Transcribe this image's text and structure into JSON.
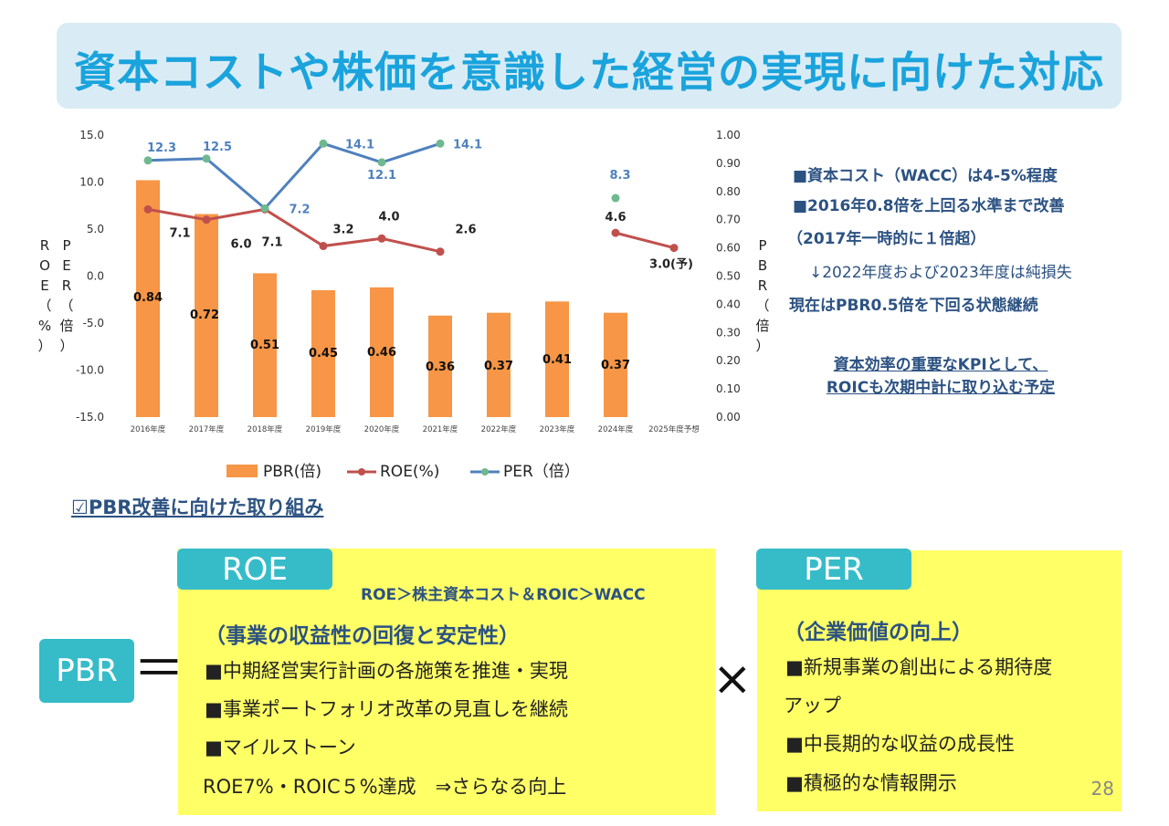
{
  "title": "資本コストや株価を意識した経営の実現に向けた対応",
  "chart_data": {
    "type": "bar+line",
    "categories": [
      "2016年度",
      "2017年度",
      "2018年度",
      "2019年度",
      "2020年度",
      "2021年度",
      "2022年度",
      "2023年度",
      "2024年度",
      "2025年度予想"
    ],
    "left_axis": {
      "label": "ROE(%) / PER(倍)",
      "ylim": [
        -15,
        15
      ],
      "ticks": [
        "15.0",
        "10.0",
        "5.0",
        "0.0",
        "-5.0",
        "-10.0",
        "-15.0"
      ]
    },
    "right_axis": {
      "label": "PBR(倍)",
      "ylim": [
        0,
        1
      ],
      "ticks": [
        "1.00",
        "0.90",
        "0.80",
        "0.70",
        "0.60",
        "0.50",
        "0.40",
        "0.30",
        "0.20",
        "0.10",
        "0.00"
      ]
    },
    "series": [
      {
        "name": "PBR(倍)",
        "type": "bar",
        "axis": "right",
        "color": "#f79646",
        "values": [
          0.84,
          0.72,
          0.51,
          0.45,
          0.46,
          0.36,
          0.37,
          0.41,
          0.37,
          null
        ],
        "labels": [
          "0.84",
          "0.72",
          "0.51",
          "0.45",
          "0.46",
          "0.36",
          "0.37",
          "0.41",
          "0.37",
          ""
        ]
      },
      {
        "name": "ROE(%)",
        "type": "line",
        "axis": "left",
        "color": "#c0504d",
        "values": [
          7.1,
          6.0,
          7.1,
          3.2,
          4.0,
          2.6,
          null,
          null,
          4.6,
          3.0
        ],
        "labels": [
          "7.1",
          "6.0",
          "7.1",
          "3.2",
          "4.0",
          "2.6",
          "",
          "",
          "4.6",
          "3.0(予)"
        ]
      },
      {
        "name": "PER（倍）",
        "type": "line",
        "axis": "left",
        "color": "#4f81bd",
        "values": [
          12.3,
          12.5,
          7.2,
          14.1,
          12.1,
          14.1,
          null,
          null,
          8.3,
          null
        ],
        "labels": [
          "12.3",
          "12.5",
          "7.2",
          "14.1",
          "12.1",
          "14.1",
          "",
          "",
          "8.3",
          ""
        ]
      }
    ],
    "legend": [
      "PBR(倍)",
      "ROE(%)",
      "PER（倍）"
    ],
    "legend_position": "bottom"
  },
  "axis_labels": {
    "left_chars": [
      "R",
      "O",
      "E",
      "（",
      "%",
      "）"
    ],
    "left_chars2": [
      "P",
      "E",
      "R",
      "（",
      "倍",
      "）"
    ],
    "right_chars": [
      "P",
      "B",
      "R",
      "（",
      "倍",
      "）"
    ]
  },
  "notes": {
    "line1": "■資本コスト（WACC）は4-5%程度",
    "line2": "■2016年0.8倍を上回る水準まで改善",
    "line3": "（2017年一時的に１倍超）",
    "line4": "↓2022年度および2023年度は純損失",
    "line5": "現在はPBR0.5倍を下回る状態継続",
    "kpi1": "資本効率の重要なKPIとして、",
    "kpi2": "ROICも次期中計に取り込む予定"
  },
  "section_head": "☑PBR改善に向けた取り組み",
  "pbr_label": "PBR",
  "equals": "＝",
  "times": "×",
  "roe_box": {
    "tab": "ROE",
    "formula": "ROE＞株主資本コスト＆ROIC＞WACC",
    "subhead": "（事業の収益性の回復と安定性）",
    "items": [
      "■中期経営実行計画の各施策を推進・実現",
      "■事業ポートフォリオ改革の見直しを継続",
      "■マイルストーン"
    ],
    "last": "ROE7%・ROIC５%達成　⇒さらなる向上"
  },
  "per_box": {
    "tab": "PER",
    "subhead": "（企業価値の向上）",
    "items": [
      "■新規事業の創出による期待度",
      "アップ",
      "■中長期的な収益の成長性",
      "■積極的な情報開示"
    ]
  },
  "page_number": "28"
}
